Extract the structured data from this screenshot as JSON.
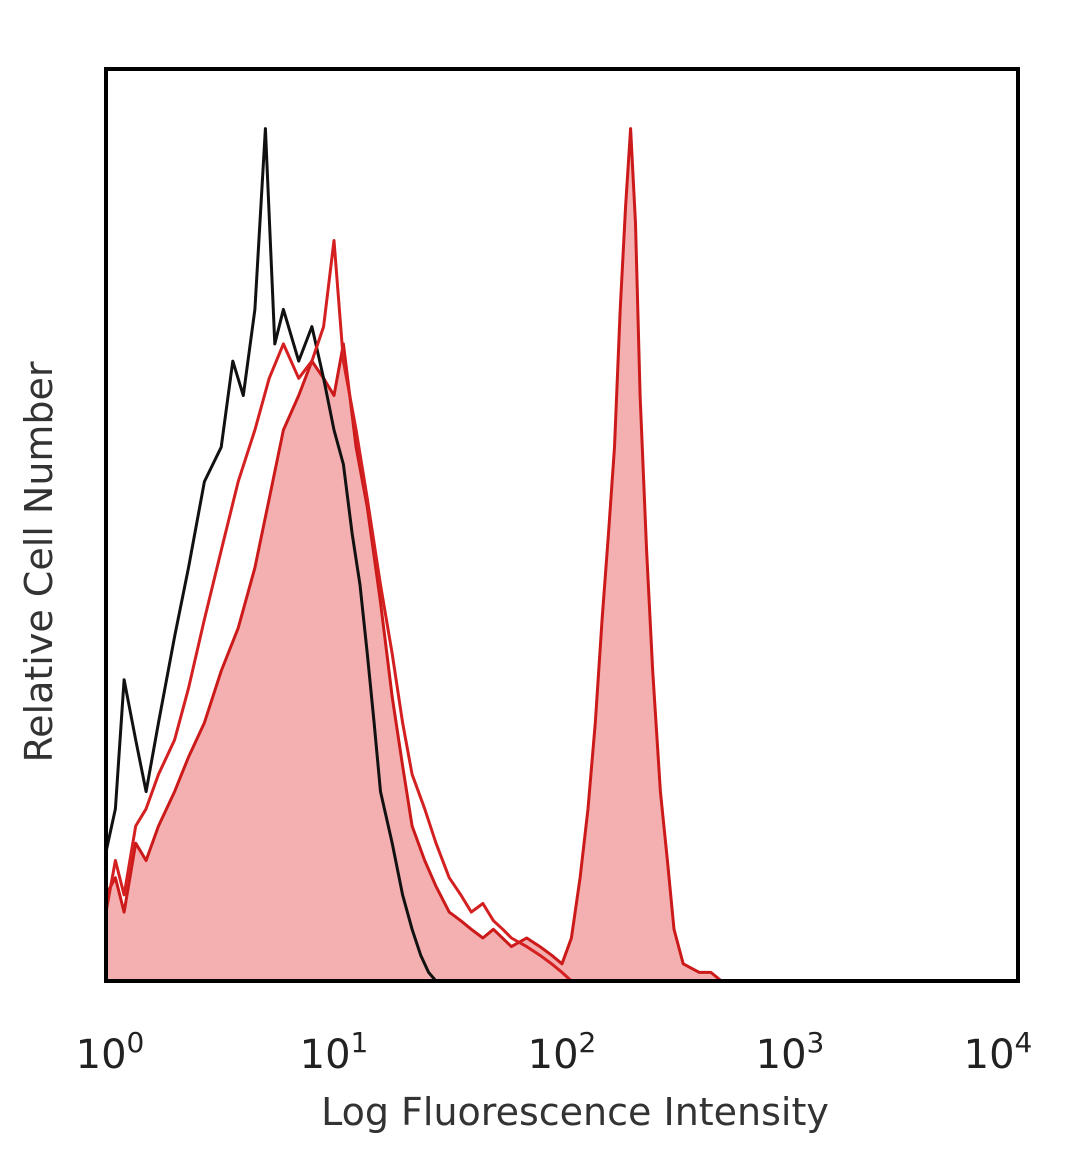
{
  "chart_data": {
    "type": "area",
    "xlabel": "Log Fluorescence Intensity",
    "ylabel": "Relative Cell Number",
    "x_scale": "log",
    "xlim": [
      1,
      10000
    ],
    "ylim": [
      0,
      1
    ],
    "grid": false,
    "legend": "none",
    "x_ticks": [
      {
        "base": "10",
        "exp": "0",
        "value": 1
      },
      {
        "base": "10",
        "exp": "1",
        "value": 10
      },
      {
        "base": "10",
        "exp": "2",
        "value": 100
      },
      {
        "base": "10",
        "exp": "3",
        "value": 1000
      },
      {
        "base": "10",
        "exp": "4",
        "value": 10000
      }
    ],
    "series": [
      {
        "style": "filled",
        "color": "#cc1a1a",
        "fill": "#f4b0b0",
        "x": [
          1,
          1.1,
          1.2,
          1.35,
          1.5,
          1.7,
          2,
          2.3,
          2.7,
          3.2,
          3.8,
          4.5,
          5.2,
          6,
          7,
          8,
          9,
          10,
          11,
          12.5,
          14,
          16,
          18,
          20,
          22,
          25,
          28,
          32,
          36,
          40,
          45,
          50,
          60,
          70,
          80,
          90,
          100,
          110,
          120,
          130,
          140,
          150,
          160,
          170,
          180,
          190,
          200,
          210,
          220,
          235,
          250,
          270,
          290,
          310,
          340,
          400,
          450,
          500
        ],
        "y": [
          0.1,
          0.12,
          0.08,
          0.16,
          0.14,
          0.18,
          0.22,
          0.26,
          0.3,
          0.36,
          0.41,
          0.48,
          0.56,
          0.64,
          0.68,
          0.72,
          0.7,
          0.68,
          0.74,
          0.62,
          0.55,
          0.44,
          0.33,
          0.25,
          0.18,
          0.14,
          0.11,
          0.08,
          0.07,
          0.06,
          0.05,
          0.06,
          0.04,
          0.05,
          0.04,
          0.03,
          0.02,
          0.05,
          0.12,
          0.2,
          0.3,
          0.42,
          0.52,
          0.62,
          0.78,
          0.9,
          0.99,
          0.88,
          0.68,
          0.5,
          0.36,
          0.22,
          0.14,
          0.06,
          0.02,
          0.01,
          0.01,
          0
        ]
      },
      {
        "style": "line",
        "color": "#111111",
        "x": [
          1,
          1.1,
          1.2,
          1.35,
          1.5,
          1.7,
          2,
          2.3,
          2.7,
          3.2,
          3.6,
          4,
          4.5,
          5,
          5.5,
          6,
          7,
          8,
          9,
          10,
          11,
          12,
          13,
          14,
          15,
          16,
          18,
          20,
          22,
          24,
          26,
          28
        ],
        "y": [
          0.15,
          0.2,
          0.35,
          0.28,
          0.22,
          0.3,
          0.4,
          0.48,
          0.58,
          0.62,
          0.72,
          0.68,
          0.78,
          0.99,
          0.74,
          0.78,
          0.72,
          0.76,
          0.7,
          0.64,
          0.6,
          0.52,
          0.46,
          0.38,
          0.3,
          0.22,
          0.16,
          0.1,
          0.06,
          0.03,
          0.01,
          0
        ]
      },
      {
        "style": "line",
        "color": "#d42020",
        "x": [
          1,
          1.1,
          1.2,
          1.35,
          1.5,
          1.7,
          2,
          2.3,
          2.7,
          3.2,
          3.8,
          4.5,
          5.2,
          6,
          7,
          8,
          9,
          10,
          11,
          12.5,
          14,
          16,
          18,
          20,
          22,
          25,
          28,
          32,
          36,
          40,
          45,
          50,
          55,
          60,
          70,
          80,
          90,
          100,
          110
        ],
        "y": [
          0.08,
          0.14,
          0.1,
          0.18,
          0.2,
          0.24,
          0.28,
          0.34,
          0.42,
          0.5,
          0.58,
          0.64,
          0.7,
          0.74,
          0.7,
          0.72,
          0.76,
          0.86,
          0.72,
          0.64,
          0.56,
          0.46,
          0.38,
          0.3,
          0.24,
          0.2,
          0.16,
          0.12,
          0.1,
          0.08,
          0.09,
          0.07,
          0.06,
          0.05,
          0.04,
          0.03,
          0.02,
          0.01,
          0
        ]
      }
    ]
  }
}
